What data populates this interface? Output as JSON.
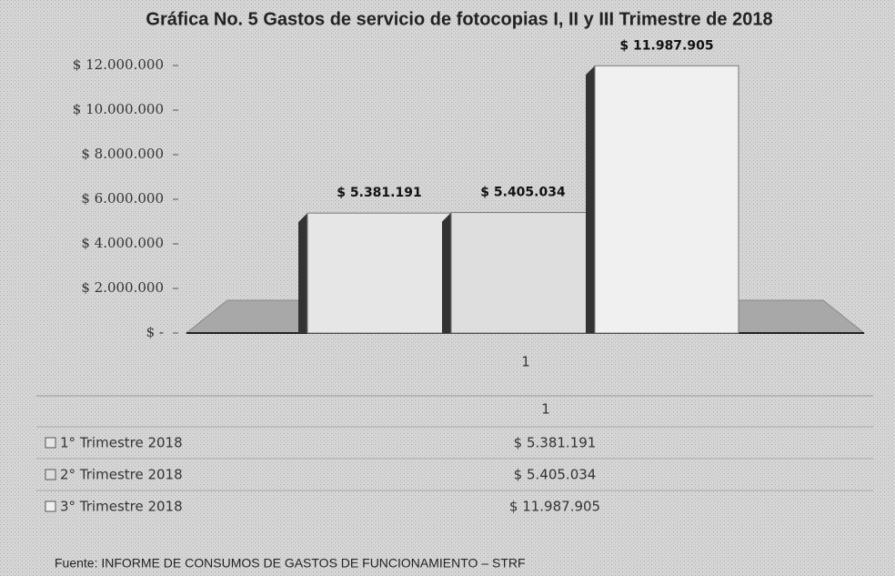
{
  "chart_data": {
    "type": "bar",
    "title": "Gráfica No. 5 Gastos de servicio de fotocopias I, II y III Trimestre de 2018",
    "categories": [
      "1"
    ],
    "series": [
      {
        "name": "1° Trimestre 2018",
        "color": "#e6e6e6",
        "values": [
          5381191
        ],
        "value_labels": [
          "$ 5.381.191"
        ]
      },
      {
        "name": "2° Trimestre 2018",
        "color": "#dedede",
        "values": [
          5405034
        ],
        "value_labels": [
          "$ 5.405.034"
        ]
      },
      {
        "name": "3° Trimestre 2018",
        "color": "#f0f0f0",
        "values": [
          11987905
        ],
        "value_labels": [
          "$ 11.987.905"
        ]
      }
    ],
    "ylim": [
      0,
      12000000
    ],
    "yticks": [
      {
        "value": 0,
        "label": "$ -"
      },
      {
        "value": 2000000,
        "label": "$ 2.000.000"
      },
      {
        "value": 4000000,
        "label": "$ 4.000.000"
      },
      {
        "value": 6000000,
        "label": "$ 6.000.000"
      },
      {
        "value": 8000000,
        "label": "$ 8.000.000"
      },
      {
        "value": 10000000,
        "label": "$ 10.000.000"
      },
      {
        "value": 12000000,
        "label": "$ 12.000.000"
      }
    ],
    "source": "Fuente: INFORME DE CONSUMOS DE GASTOS DE FUNCIONAMIENTO – STRF"
  }
}
